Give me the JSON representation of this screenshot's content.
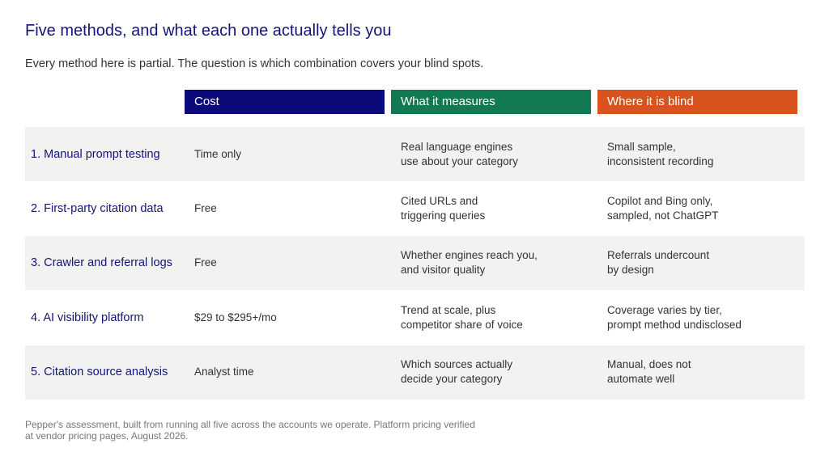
{
  "title": "Five methods, and what each one actually tells you",
  "subtitle": "Every method here is partial. The question is which combination covers your blind spots.",
  "columns": [
    {
      "label": "Cost",
      "color": "#0a0a7a"
    },
    {
      "label": "What it measures",
      "color": "#117a52"
    },
    {
      "label": "Where it is blind",
      "color": "#d9531e"
    }
  ],
  "rows": [
    {
      "method": "1. Manual prompt testing",
      "cost": "Time only",
      "measures": "Real language engines\nuse about your category",
      "blind": "Small sample,\ninconsistent recording"
    },
    {
      "method": "2. First-party citation data",
      "cost": "Free",
      "measures": "Cited URLs and\ntriggering queries",
      "blind": "Copilot and Bing only,\nsampled, not ChatGPT"
    },
    {
      "method": "3. Crawler and referral logs",
      "cost": "Free",
      "measures": "Whether engines reach you,\nand visitor quality",
      "blind": "Referrals undercount\nby design"
    },
    {
      "method": "4. AI visibility platform",
      "cost": "$29 to $295+/mo",
      "measures": "Trend at scale, plus\ncompetitor share of voice",
      "blind": "Coverage varies by tier,\nprompt method undisclosed"
    },
    {
      "method": "5. Citation source analysis",
      "cost": "Analyst time",
      "measures": "Which sources actually\ndecide your category",
      "blind": "Manual, does not\nautomate well"
    }
  ],
  "footnote": "Pepper's assessment, built from running all five across the accounts we operate. Platform pricing verified at vendor pricing pages, August 2026."
}
